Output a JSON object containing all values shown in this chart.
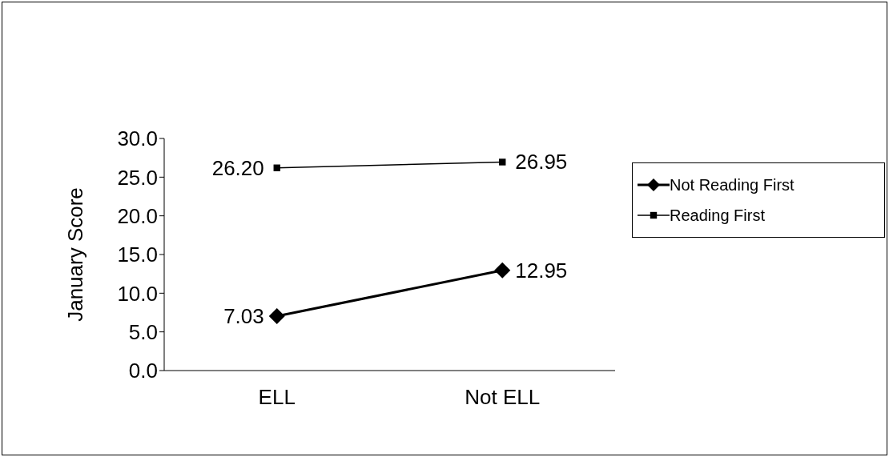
{
  "chart_data": {
    "type": "line",
    "ylabel": "January Score",
    "categories": [
      "ELL",
      "Not ELL"
    ],
    "series": [
      {
        "name": "Not Reading First",
        "color": "#000000",
        "marker": "diamond",
        "values": [
          7.03,
          12.95
        ],
        "value_labels": [
          "7.03",
          "12.95"
        ]
      },
      {
        "name": "Reading First",
        "color": "#000000",
        "marker": "square",
        "values": [
          26.2,
          26.95
        ],
        "value_labels": [
          "26.20",
          "26.95"
        ]
      }
    ],
    "ylim": [
      0,
      30
    ],
    "yticks": [
      {
        "value": 0,
        "label": "0.0"
      },
      {
        "value": 5,
        "label": "5.0"
      },
      {
        "value": 10,
        "label": "10.0"
      },
      {
        "value": 15,
        "label": "15.0"
      },
      {
        "value": 20,
        "label": "20.0"
      },
      {
        "value": 25,
        "label": "25.0"
      },
      {
        "value": 30,
        "label": "30.0"
      }
    ],
    "grid": false,
    "legend": "right"
  }
}
